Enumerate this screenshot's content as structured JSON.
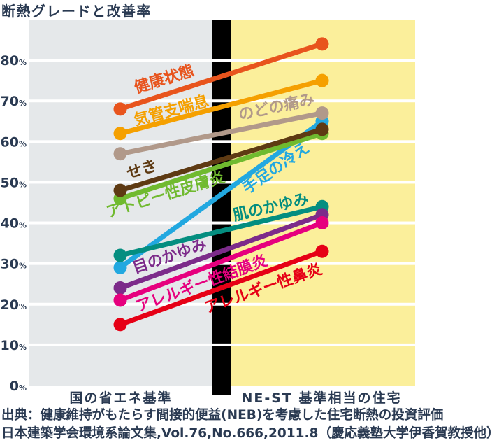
{
  "title": "断熱グレードと改善率",
  "chart_data": {
    "type": "line",
    "subtype": "slope-chart",
    "title": "断熱グレードと改善率",
    "categories": [
      "国の省エネ基準",
      "NE-ST 基準相当の住宅"
    ],
    "unit": "%",
    "ylim": [
      0,
      90
    ],
    "yticks": [
      80,
      70,
      60,
      50,
      40,
      30,
      20,
      10,
      0
    ],
    "grid": true,
    "legend": "labels-on-lines",
    "series": [
      {
        "name": "手足の冷え",
        "color": "#22a8e0",
        "values": [
          29,
          65
        ],
        "label": {
          "x": 399,
          "y": 246,
          "angle": -35
        }
      },
      {
        "name": "健康状態",
        "color": "#e8541d",
        "values": [
          68,
          84
        ],
        "label": {
          "x": 237,
          "y": 120,
          "angle": -17
        }
      },
      {
        "name": "気管支喘息",
        "color": "#f5a000",
        "values": [
          62,
          75
        ],
        "label": {
          "x": 247,
          "y": 165,
          "angle": -15
        }
      },
      {
        "name": "のどの痛み",
        "color": "#b1998a",
        "values": [
          57,
          67
        ],
        "label": {
          "x": 397,
          "y": 160,
          "angle": -12
        }
      },
      {
        "name": "アトピー性皮膚炎",
        "color": "#70ba2f",
        "values": [
          46,
          62
        ],
        "label": {
          "x": 239,
          "y": 285,
          "angle": -17
        }
      },
      {
        "name": "せき",
        "color": "#5e3a13",
        "values": [
          48,
          63
        ],
        "label": {
          "x": 205,
          "y": 249,
          "angle": -17
        }
      },
      {
        "name": "肌のかゆみ",
        "color": "#048e80",
        "values": [
          32,
          44
        ],
        "label": {
          "x": 389,
          "y": 303,
          "angle": -13
        }
      },
      {
        "name": "目のかゆみ",
        "color": "#7c2b8a",
        "values": [
          24,
          42
        ],
        "label": {
          "x": 245,
          "y": 373,
          "angle": -19
        }
      },
      {
        "name": "アレルギー性結膜炎",
        "color": "#e6007e",
        "values": [
          21,
          40
        ],
        "label": {
          "x": 291,
          "y": 412,
          "angle": -20
        }
      },
      {
        "name": "アレルギー性鼻炎",
        "color": "#e60016",
        "values": [
          15,
          33
        ],
        "label": {
          "x": 379,
          "y": 419,
          "angle": -19
        }
      }
    ],
    "panels": {
      "left_bg": "#e5e8ea",
      "divider_bg": "#000000",
      "right_bg": "#fbef9b"
    },
    "colors": {
      "axis_text": "#2a3a52",
      "gridline": "#ffffff"
    }
  },
  "source": {
    "line1": "出典：健康維持がもたらす間接的便益(NEB)を考慮した住宅断熱の投資評価",
    "line2": "日本建築学会環境系論文集,Vol.76,No.666,2011.8（慶応義塾大学伊香賀教授他）"
  }
}
